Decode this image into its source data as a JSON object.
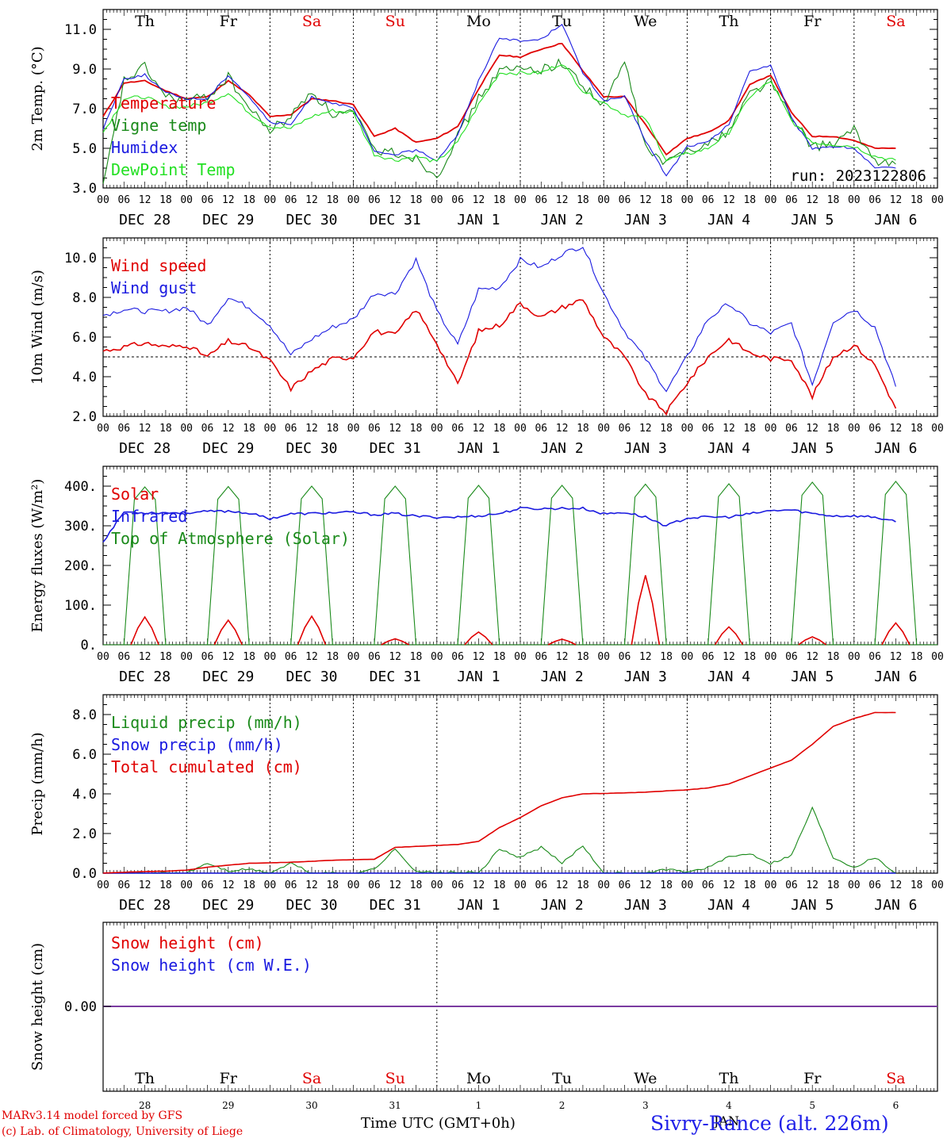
{
  "run_label": "run: 2023122806",
  "footer": {
    "model": "MARv3.14 model forced by GFS",
    "credit": "(c) Lab. of Climatology, University of Liege",
    "xlabel": "Time UTC (GMT+0h)",
    "station": "Sivry-Rance (alt. 226m)",
    "month_label": "JAN"
  },
  "colors": {
    "red": "#e00000",
    "green": "#1a8a1a",
    "blue": "#1a1ae0",
    "lightgreen": "#22e022",
    "weekend": "#e00000"
  },
  "days": {
    "weekdays": [
      "Th",
      "Fr",
      "Sa",
      "Su",
      "Mo",
      "Tu",
      "We",
      "Th",
      "Fr",
      "Sa"
    ],
    "weekend_index": [
      2,
      3,
      9
    ],
    "date_labels": [
      "DEC 28",
      "DEC 29",
      "DEC 30",
      "DEC 31",
      "JAN  1",
      "JAN  2",
      "JAN  3",
      "JAN  4",
      "JAN  5",
      "JAN  6"
    ],
    "hour_ticks": [
      "00",
      "06",
      "12",
      "18"
    ],
    "short_dates": [
      "28",
      "29",
      "30",
      "31",
      "1",
      "2",
      "3",
      "4",
      "5",
      "6"
    ]
  },
  "chart_data": [
    {
      "type": "line",
      "ylabel": "2m Temp. (°C)",
      "ylim": [
        3.0,
        12.0
      ],
      "yticks": [
        "3.0",
        "5.0",
        "7.0",
        "9.0",
        "11.0"
      ],
      "x_unit": "hours since DEC 28 00 UTC",
      "series": [
        {
          "name": "Temperature",
          "color": "red",
          "x": [
            0,
            6,
            12,
            18,
            24,
            30,
            36,
            42,
            48,
            54,
            60,
            66,
            72,
            78,
            84,
            90,
            96,
            102,
            108,
            114,
            120,
            126,
            132,
            138,
            144,
            150,
            156,
            162,
            168,
            174,
            180,
            186,
            192,
            198,
            204,
            210,
            216,
            222,
            228
          ],
          "y": [
            6.6,
            8.3,
            8.4,
            7.9,
            7.5,
            7.6,
            8.4,
            7.7,
            6.6,
            6.7,
            7.5,
            7.4,
            7.2,
            5.6,
            6.0,
            5.3,
            5.5,
            6.1,
            8.0,
            9.7,
            9.6,
            10.0,
            10.3,
            8.9,
            7.6,
            7.6,
            6.2,
            4.7,
            5.5,
            5.8,
            6.4,
            8.2,
            8.7,
            6.8,
            5.6,
            5.6,
            5.4,
            5.0,
            5.0
          ],
          "step": 6
        },
        {
          "name": "Vigne temp",
          "color": "green",
          "x": [
            0,
            6,
            12,
            18,
            24,
            30,
            36,
            42,
            48,
            54,
            60,
            66,
            72,
            78,
            84,
            90,
            96,
            102,
            108,
            114,
            120,
            126,
            132,
            138,
            144,
            150,
            156,
            162,
            168,
            174,
            180,
            186,
            192,
            198,
            204,
            210,
            216,
            222,
            228
          ],
          "y": [
            3.0,
            8.4,
            9.1,
            7.6,
            7.4,
            7.6,
            8.6,
            7.0,
            5.9,
            6.6,
            7.9,
            6.7,
            6.8,
            4.9,
            4.8,
            4.5,
            3.6,
            5.6,
            7.5,
            8.9,
            9.0,
            9.0,
            9.3,
            8.2,
            7.1,
            9.4,
            5.0,
            4.2,
            5.0,
            5.2,
            5.9,
            7.8,
            8.4,
            6.5,
            5.1,
            5.2,
            5.9,
            4.4,
            4.2
          ]
        },
        {
          "name": "Humidex",
          "color": "blue",
          "x": [
            0,
            6,
            12,
            18,
            24,
            30,
            36,
            42,
            48,
            54,
            60,
            66,
            72,
            78,
            84,
            90,
            96,
            102,
            108,
            114,
            120,
            126,
            132,
            138,
            144,
            150,
            156,
            162,
            168,
            174,
            180,
            186,
            192,
            198,
            204,
            210,
            216,
            222,
            228
          ],
          "y": [
            6.0,
            8.5,
            8.7,
            7.8,
            7.5,
            7.5,
            8.7,
            7.6,
            6.3,
            6.2,
            7.6,
            7.3,
            7.0,
            4.8,
            4.7,
            4.9,
            4.4,
            5.7,
            8.4,
            10.6,
            10.4,
            10.5,
            11.3,
            8.8,
            7.4,
            7.6,
            5.4,
            3.6,
            5.1,
            5.3,
            6.2,
            8.9,
            9.2,
            6.5,
            5.0,
            5.1,
            5.0,
            4.0,
            4.0
          ]
        },
        {
          "name": "DewPoint Temp",
          "color": "lightgreen",
          "x": [
            0,
            6,
            12,
            18,
            24,
            30,
            36,
            42,
            48,
            54,
            60,
            66,
            72,
            78,
            84,
            90,
            96,
            102,
            108,
            114,
            120,
            126,
            132,
            138,
            144,
            150,
            156,
            162,
            168,
            174,
            180,
            186,
            192,
            198,
            204,
            210,
            216,
            222,
            228
          ],
          "y": [
            5.8,
            7.5,
            7.6,
            7.1,
            7.1,
            7.3,
            7.8,
            6.8,
            6.1,
            6.0,
            6.6,
            6.9,
            6.8,
            4.7,
            4.4,
            4.6,
            4.3,
            5.3,
            7.2,
            8.8,
            8.8,
            8.8,
            9.3,
            7.9,
            7.3,
            6.7,
            6.5,
            4.4,
            4.7,
            5.0,
            5.8,
            7.6,
            8.4,
            6.4,
            5.3,
            5.2,
            5.1,
            4.6,
            4.4
          ]
        }
      ]
    },
    {
      "type": "line",
      "ylabel": "10m Wind (m/s)",
      "ylim": [
        2.0,
        11.0
      ],
      "yticks": [
        "2.0",
        "4.0",
        "6.0",
        "8.0",
        "10.0"
      ],
      "reference_line": 5.0,
      "series": [
        {
          "name": "Wind speed",
          "color": "red",
          "x": [
            0,
            6,
            12,
            18,
            24,
            30,
            36,
            42,
            48,
            54,
            60,
            66,
            72,
            78,
            84,
            90,
            96,
            102,
            108,
            114,
            120,
            126,
            132,
            138,
            144,
            150,
            156,
            162,
            168,
            174,
            180,
            186,
            192,
            198,
            204,
            210,
            216,
            222,
            228
          ],
          "y": [
            5.3,
            5.5,
            5.7,
            5.5,
            5.6,
            5.0,
            5.8,
            5.5,
            4.8,
            3.4,
            4.3,
            4.9,
            5.0,
            6.3,
            6.1,
            7.4,
            5.7,
            3.6,
            6.3,
            6.6,
            7.7,
            7.0,
            7.5,
            7.9,
            6.0,
            5.0,
            3.1,
            2.2,
            3.7,
            5.0,
            5.9,
            5.2,
            4.9,
            4.9,
            3.0,
            5.0,
            5.6,
            4.6,
            2.4
          ]
        },
        {
          "name": "Wind gust",
          "color": "blue",
          "x": [
            0,
            6,
            12,
            18,
            24,
            30,
            36,
            42,
            48,
            54,
            60,
            66,
            72,
            78,
            84,
            90,
            96,
            102,
            108,
            114,
            120,
            126,
            132,
            138,
            144,
            150,
            156,
            162,
            168,
            174,
            180,
            186,
            192,
            198,
            204,
            210,
            216,
            222,
            228
          ],
          "y": [
            7.1,
            7.4,
            7.3,
            7.3,
            7.5,
            6.6,
            8.0,
            7.5,
            6.6,
            5.1,
            5.9,
            6.5,
            6.9,
            8.2,
            8.2,
            9.9,
            7.3,
            5.6,
            8.4,
            8.5,
            9.9,
            9.5,
            10.2,
            10.6,
            8.2,
            6.3,
            4.9,
            3.3,
            5.0,
            6.9,
            7.7,
            6.7,
            6.2,
            6.7,
            3.6,
            6.8,
            7.4,
            6.5,
            3.5
          ]
        }
      ]
    },
    {
      "type": "line",
      "ylabel": "Energy fluxes (W/m²)",
      "ylim": [
        0,
        450
      ],
      "yticks": [
        "0.",
        "100.",
        "200.",
        "300.",
        "400."
      ],
      "series": [
        {
          "name": "Solar",
          "color": "red",
          "peaks_hour12": [
            70,
            62,
            72,
            15,
            32,
            14,
            175,
            45,
            20,
            55
          ]
        },
        {
          "name": "Infrared",
          "color": "blue",
          "x": [
            0,
            6,
            12,
            18,
            24,
            30,
            36,
            42,
            48,
            54,
            60,
            66,
            72,
            78,
            84,
            90,
            96,
            102,
            108,
            114,
            120,
            126,
            132,
            138,
            144,
            150,
            156,
            162,
            168,
            174,
            180,
            186,
            192,
            198,
            204,
            210,
            216,
            222,
            228
          ],
          "y": [
            260,
            335,
            333,
            333,
            333,
            336,
            337,
            332,
            318,
            330,
            331,
            333,
            334,
            328,
            331,
            324,
            322,
            322,
            325,
            331,
            344,
            343,
            344,
            344,
            330,
            334,
            322,
            300,
            320,
            322,
            322,
            330,
            338,
            340,
            331,
            325,
            325,
            322,
            310
          ]
        },
        {
          "name": "Top of Atmosphere (Solar)",
          "color": "green",
          "peaks_hour12": [
            398,
            399,
            400,
            400,
            402,
            402,
            405,
            406,
            410,
            412
          ]
        }
      ]
    },
    {
      "type": "line",
      "ylabel": "Precip (mm/h)",
      "ylim": [
        0,
        9.0
      ],
      "yticks": [
        "0.0",
        "2.0",
        "4.0",
        "6.0",
        "8.0"
      ],
      "series": [
        {
          "name": "Liquid precip (mm/h)",
          "color": "green",
          "x": [
            0,
            6,
            12,
            18,
            24,
            30,
            36,
            42,
            48,
            54,
            60,
            66,
            72,
            78,
            84,
            90,
            96,
            102,
            108,
            114,
            120,
            126,
            132,
            138,
            144,
            150,
            156,
            162,
            168,
            174,
            180,
            186,
            192,
            198,
            204,
            210,
            216,
            222,
            228
          ],
          "y": [
            0,
            0,
            0,
            0,
            0,
            0.5,
            0.1,
            0.2,
            0,
            0.5,
            0,
            0,
            0,
            0.2,
            1.2,
            0.1,
            0,
            0.05,
            0,
            1.2,
            0.8,
            1.3,
            0.5,
            1.4,
            0,
            0,
            0,
            0.2,
            0.05,
            0.3,
            0.8,
            1.0,
            0.5,
            0.9,
            3.3,
            0.8,
            0.3,
            0.8,
            0
          ]
        },
        {
          "name": "Snow precip (mm/h)",
          "color": "blue",
          "x": [
            0,
            228
          ],
          "y": [
            0,
            0
          ]
        },
        {
          "name": "Total cumulated (cm)",
          "color": "red",
          "x": [
            0,
            6,
            12,
            18,
            24,
            30,
            36,
            42,
            48,
            54,
            60,
            66,
            72,
            78,
            84,
            90,
            96,
            102,
            108,
            114,
            120,
            126,
            132,
            138,
            144,
            150,
            156,
            162,
            168,
            174,
            180,
            186,
            192,
            198,
            204,
            210,
            216,
            222,
            228
          ],
          "y": [
            0,
            0.05,
            0.08,
            0.1,
            0.15,
            0.3,
            0.4,
            0.5,
            0.52,
            0.55,
            0.6,
            0.65,
            0.68,
            0.7,
            1.3,
            1.35,
            1.4,
            1.45,
            1.6,
            2.3,
            2.8,
            3.4,
            3.8,
            4.0,
            4.02,
            4.05,
            4.08,
            4.15,
            4.2,
            4.3,
            4.5,
            4.9,
            5.3,
            5.7,
            6.5,
            7.4,
            7.8,
            8.1,
            8.1
          ]
        }
      ]
    },
    {
      "type": "line",
      "ylabel": "Snow height (cm)",
      "yticks": [
        "0.00"
      ],
      "series": [
        {
          "name": "Snow height (cm)",
          "color": "red",
          "x": [
            0,
            228
          ],
          "y": [
            0,
            0
          ]
        },
        {
          "name": "Snow height (cm W.E.)",
          "color": "blue",
          "x": [
            0,
            228
          ],
          "y": [
            0,
            0
          ]
        }
      ]
    }
  ]
}
